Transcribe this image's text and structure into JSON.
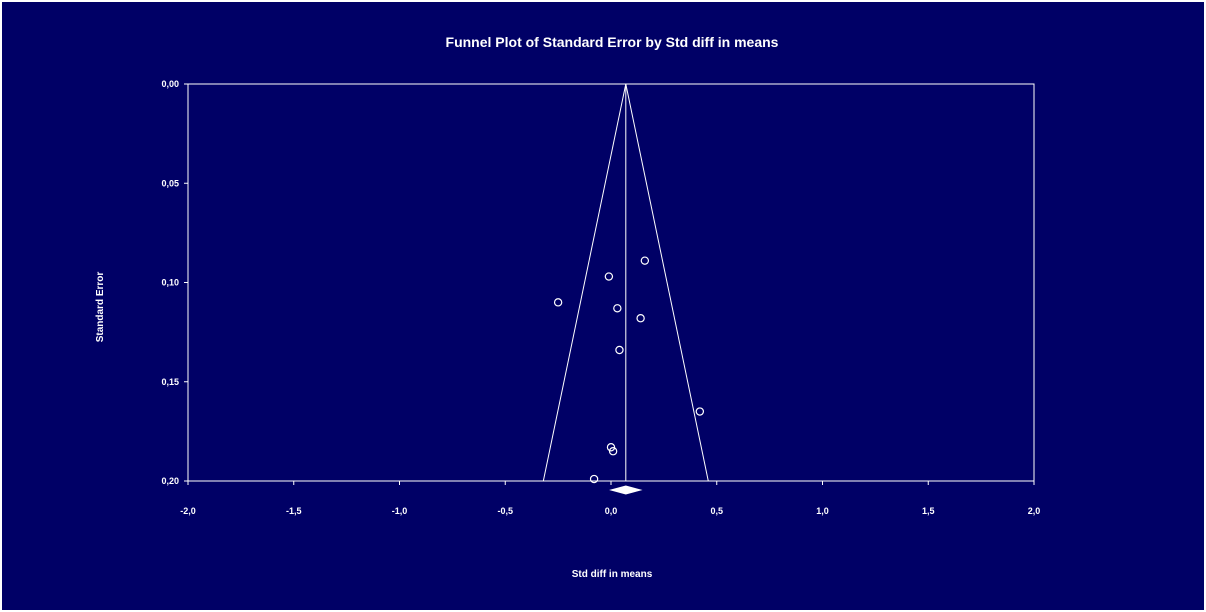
{
  "colors": {
    "background": "#000066",
    "foreground": "#ffffff"
  },
  "chart_data": {
    "type": "scatter",
    "title": "Funnel Plot of Standard Error by Std diff in means",
    "xlabel": "Std diff in means",
    "ylabel": "Standard Error",
    "xlim": [
      -2.0,
      2.0
    ],
    "ylim": [
      0.2,
      0.0
    ],
    "y_inverted": true,
    "grid": false,
    "x_ticks": [
      -2.0,
      -1.5,
      -1.0,
      -0.5,
      0.0,
      0.5,
      1.0,
      1.5,
      2.0
    ],
    "x_tick_labels": [
      "-2,0",
      "-1,5",
      "-1,0",
      "-0,5",
      "0,0",
      "0,5",
      "1,0",
      "1,5",
      "2,0"
    ],
    "y_ticks": [
      0.0,
      0.05,
      0.1,
      0.15,
      0.2
    ],
    "y_tick_labels": [
      "0,00",
      "0,05",
      "0,10",
      "0,15",
      "0,20"
    ],
    "summary_effect": 0.07,
    "funnel_limits": {
      "left_at_ylim_bottom": -0.32,
      "right_at_ylim_bottom": 0.46
    },
    "summary_diamond": {
      "center": 0.07,
      "lower": 0.0,
      "upper": 0.14
    },
    "points": [
      {
        "x": 0.16,
        "y": 0.089
      },
      {
        "x": -0.01,
        "y": 0.097
      },
      {
        "x": -0.25,
        "y": 0.11
      },
      {
        "x": 0.03,
        "y": 0.113
      },
      {
        "x": 0.14,
        "y": 0.118
      },
      {
        "x": 0.04,
        "y": 0.134
      },
      {
        "x": 0.42,
        "y": 0.165
      },
      {
        "x": 0.0,
        "y": 0.183
      },
      {
        "x": 0.01,
        "y": 0.185
      },
      {
        "x": -0.08,
        "y": 0.199
      }
    ]
  }
}
